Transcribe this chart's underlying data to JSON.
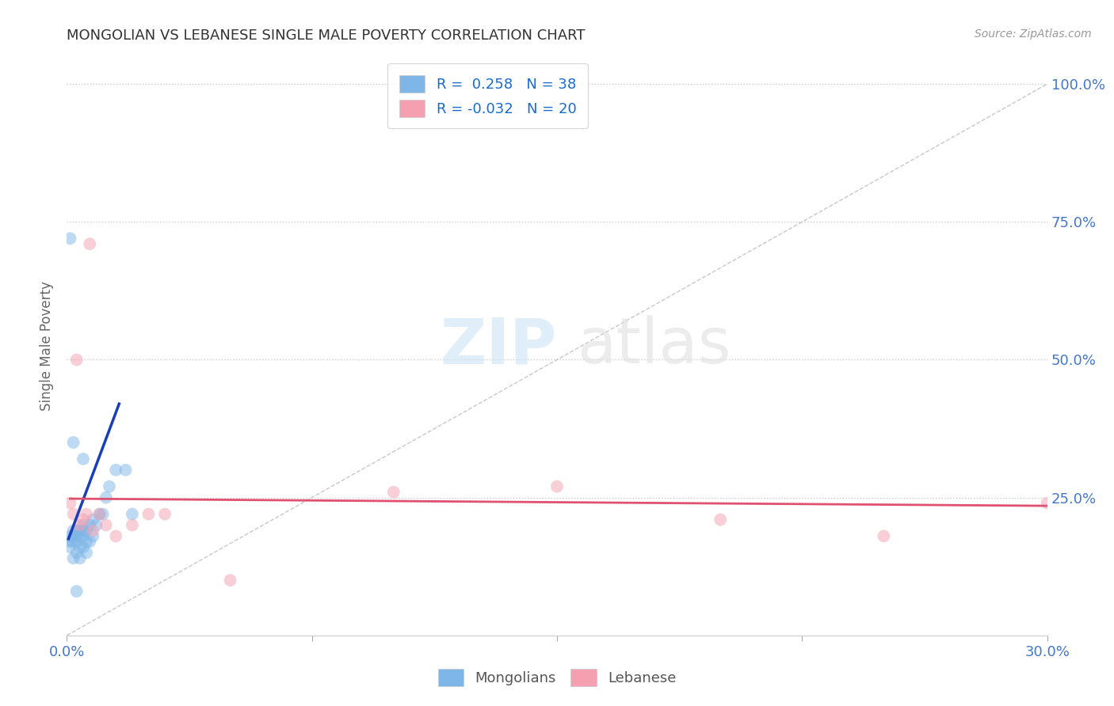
{
  "title": "MONGOLIAN VS LEBANESE SINGLE MALE POVERTY CORRELATION CHART",
  "source": "Source: ZipAtlas.com",
  "ylabel": "Single Male Poverty",
  "ytick_labels": [
    "100.0%",
    "75.0%",
    "50.0%",
    "25.0%"
  ],
  "ytick_values": [
    1.0,
    0.75,
    0.5,
    0.25
  ],
  "xlim": [
    0.0,
    0.3
  ],
  "ylim": [
    0.0,
    1.05
  ],
  "mongolian_color": "#7EB6E8",
  "lebanese_color": "#F4A0B0",
  "blue_line_color": "#1a3eb5",
  "pink_line_color": "#e05070",
  "diag_line_color": "#bbbbbb",
  "mongolian_x": [
    0.001,
    0.001,
    0.001,
    0.002,
    0.002,
    0.002,
    0.002,
    0.003,
    0.003,
    0.003,
    0.003,
    0.004,
    0.004,
    0.004,
    0.004,
    0.005,
    0.005,
    0.005,
    0.005,
    0.006,
    0.006,
    0.006,
    0.007,
    0.007,
    0.008,
    0.008,
    0.009,
    0.01,
    0.011,
    0.012,
    0.013,
    0.015,
    0.018,
    0.02,
    0.001,
    0.002,
    0.005,
    0.003
  ],
  "mongolian_y": [
    0.18,
    0.17,
    0.16,
    0.19,
    0.18,
    0.17,
    0.14,
    0.19,
    0.18,
    0.17,
    0.15,
    0.19,
    0.18,
    0.16,
    0.14,
    0.2,
    0.19,
    0.18,
    0.16,
    0.19,
    0.17,
    0.15,
    0.2,
    0.17,
    0.21,
    0.18,
    0.2,
    0.22,
    0.22,
    0.25,
    0.27,
    0.3,
    0.3,
    0.22,
    0.72,
    0.35,
    0.32,
    0.08
  ],
  "lebanese_x": [
    0.001,
    0.002,
    0.003,
    0.004,
    0.005,
    0.006,
    0.007,
    0.008,
    0.01,
    0.012,
    0.015,
    0.02,
    0.025,
    0.03,
    0.05,
    0.1,
    0.15,
    0.2,
    0.25,
    0.3
  ],
  "lebanese_y": [
    0.24,
    0.22,
    0.5,
    0.2,
    0.21,
    0.22,
    0.71,
    0.19,
    0.22,
    0.2,
    0.18,
    0.2,
    0.22,
    0.22,
    0.1,
    0.26,
    0.27,
    0.21,
    0.18,
    0.24
  ],
  "blue_line_x": [
    0.0005,
    0.016
  ],
  "blue_line_y": [
    0.175,
    0.42
  ],
  "pink_line_x": [
    0.001,
    0.3
  ],
  "pink_line_y": [
    0.248,
    0.235
  ],
  "diag_line_x": [
    0.0,
    0.3
  ],
  "diag_line_y": [
    0.0,
    1.0
  ],
  "marker_size": 130,
  "alpha": 0.5
}
